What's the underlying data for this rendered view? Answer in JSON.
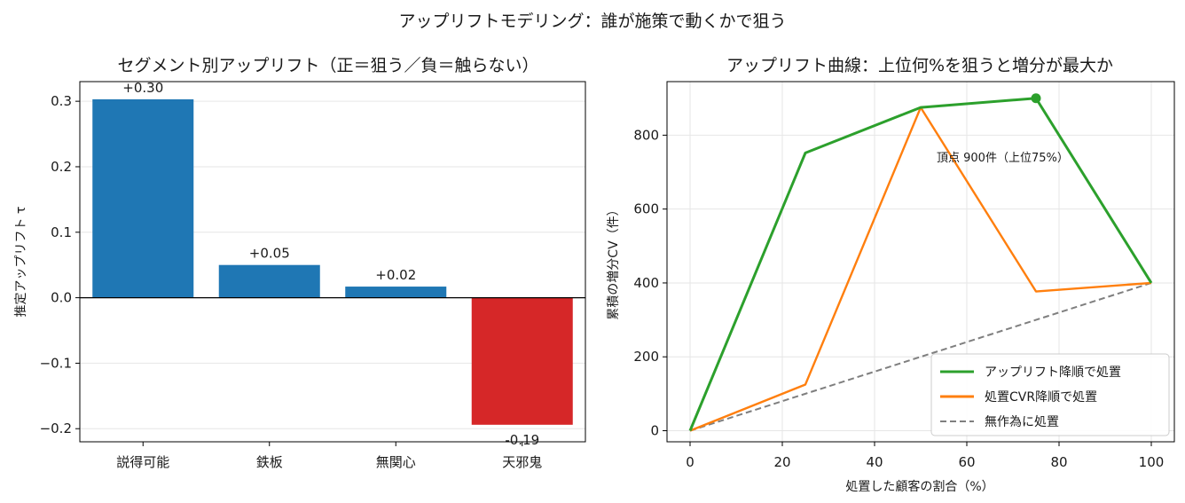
{
  "suptitle": "アップリフトモデリング：誰が施策で動くかで狙う",
  "colors": {
    "positive": "#1f77b4",
    "negative": "#d62728",
    "uplift": "#2ca02c",
    "cvr": "#ff7f0e",
    "random": "#7f7f7f"
  },
  "chart_data": [
    {
      "type": "bar",
      "title": "セグメント別アップリフト（正＝狙う／負＝触らない）",
      "xlabel": "",
      "ylabel": "推定アップリフト τ",
      "categories": [
        "説得可能",
        "鉄板",
        "無関心",
        "天邪鬼"
      ],
      "values": [
        0.303,
        0.05,
        0.017,
        -0.194
      ],
      "value_labels": [
        "+0.30",
        "+0.05",
        "+0.02",
        "-0.19"
      ],
      "ylim": [
        -0.22,
        0.33
      ],
      "yticks": [
        -0.2,
        -0.1,
        0.0,
        0.1,
        0.2,
        0.3
      ],
      "ytick_labels": [
        "−0.2",
        "−0.1",
        "0.0",
        "0.1",
        "0.2",
        "0.3"
      ],
      "grid": "y"
    },
    {
      "type": "line",
      "title": "アップリフト曲線：上位何%を狙うと増分が最大か",
      "xlabel": "処置した顧客の割合（%）",
      "ylabel": "累積の増分CV（件）",
      "xlim": [
        -5,
        105
      ],
      "ylim": [
        -30,
        945
      ],
      "xticks": [
        0,
        20,
        40,
        60,
        80,
        100
      ],
      "yticks": [
        0,
        200,
        400,
        600,
        800
      ],
      "x": [
        0,
        25,
        50,
        75,
        100
      ],
      "series": [
        {
          "name": "アップリフト降順で処置",
          "values": [
            0,
            752,
            875,
            900,
            400
          ],
          "color": "#2ca02c",
          "style": "solid"
        },
        {
          "name": "処置CVR降順で処置",
          "values": [
            0,
            125,
            875,
            377,
            400
          ],
          "color": "#ff7f0e",
          "style": "solid"
        },
        {
          "name": "無作為に処置",
          "values": [
            0,
            100,
            200,
            300,
            400
          ],
          "color": "#7f7f7f",
          "style": "dashed"
        }
      ],
      "peak": {
        "x": 75,
        "y": 900
      },
      "annotation": "頂点 900件（上位75%）",
      "legend": "lower-right",
      "grid": true
    }
  ]
}
